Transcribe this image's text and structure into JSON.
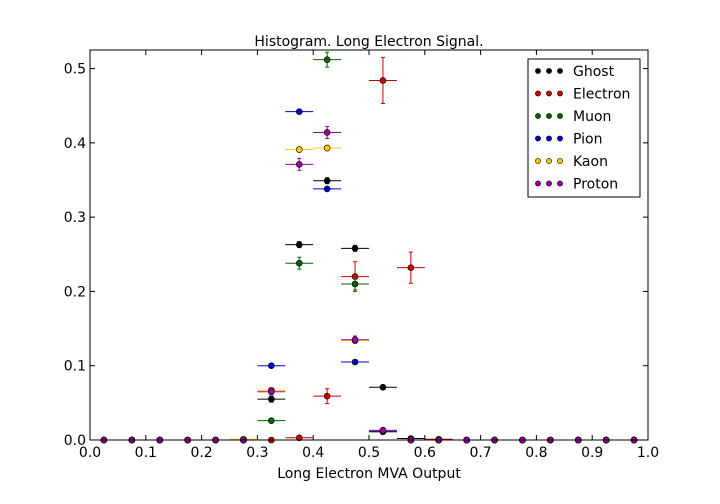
{
  "chart_data": {
    "type": "scatter",
    "title": "Histogram. Long Electron Signal.",
    "xlabel": "Long Electron MVA Output",
    "ylabel": "",
    "xlim": [
      0.0,
      1.0
    ],
    "ylim": [
      0.0,
      0.525
    ],
    "xticks": [
      "0.0",
      "0.1",
      "0.2",
      "0.3",
      "0.4",
      "0.5",
      "0.6",
      "0.7",
      "0.8",
      "0.9",
      "1.0"
    ],
    "yticks": [
      "0.0",
      "0.1",
      "0.2",
      "0.3",
      "0.4",
      "0.5"
    ],
    "grid": false,
    "legend_position": "top-right",
    "bin_half_width": 0.025,
    "series": [
      {
        "name": "Ghost",
        "color": "#000000",
        "points": [
          {
            "x": 0.025,
            "y": 0.0,
            "err": 0.0
          },
          {
            "x": 0.075,
            "y": 0.0,
            "err": 0.0
          },
          {
            "x": 0.125,
            "y": 0.0,
            "err": 0.0
          },
          {
            "x": 0.175,
            "y": 0.0,
            "err": 0.0
          },
          {
            "x": 0.225,
            "y": 0.0,
            "err": 0.0
          },
          {
            "x": 0.275,
            "y": 0.0,
            "err": 0.0
          },
          {
            "x": 0.325,
            "y": 0.055,
            "err": 0.004
          },
          {
            "x": 0.375,
            "y": 0.263,
            "err": 0.004
          },
          {
            "x": 0.425,
            "y": 0.349,
            "err": 0.004
          },
          {
            "x": 0.475,
            "y": 0.258,
            "err": 0.004
          },
          {
            "x": 0.525,
            "y": 0.071,
            "err": 0.003
          },
          {
            "x": 0.575,
            "y": 0.002,
            "err": 0.001
          },
          {
            "x": 0.625,
            "y": 0.0,
            "err": 0.0
          },
          {
            "x": 0.675,
            "y": 0.0,
            "err": 0.0
          },
          {
            "x": 0.725,
            "y": 0.0,
            "err": 0.0
          },
          {
            "x": 0.775,
            "y": 0.0,
            "err": 0.0
          },
          {
            "x": 0.825,
            "y": 0.0,
            "err": 0.0
          },
          {
            "x": 0.875,
            "y": 0.0,
            "err": 0.0
          },
          {
            "x": 0.925,
            "y": 0.0,
            "err": 0.0
          },
          {
            "x": 0.975,
            "y": 0.0,
            "err": 0.0
          }
        ]
      },
      {
        "name": "Electron",
        "color": "#cc0000",
        "points": [
          {
            "x": 0.025,
            "y": 0.0,
            "err": 0.0
          },
          {
            "x": 0.075,
            "y": 0.0,
            "err": 0.0
          },
          {
            "x": 0.125,
            "y": 0.0,
            "err": 0.0
          },
          {
            "x": 0.175,
            "y": 0.0,
            "err": 0.0
          },
          {
            "x": 0.225,
            "y": 0.0,
            "err": 0.0
          },
          {
            "x": 0.275,
            "y": 0.0,
            "err": 0.0
          },
          {
            "x": 0.325,
            "y": 0.0,
            "err": 0.0
          },
          {
            "x": 0.375,
            "y": 0.003,
            "err": 0.002
          },
          {
            "x": 0.425,
            "y": 0.059,
            "err": 0.01
          },
          {
            "x": 0.475,
            "y": 0.22,
            "err": 0.02
          },
          {
            "x": 0.525,
            "y": 0.484,
            "err": 0.031
          },
          {
            "x": 0.575,
            "y": 0.232,
            "err": 0.021
          },
          {
            "x": 0.625,
            "y": 0.001,
            "err": 0.001
          },
          {
            "x": 0.675,
            "y": 0.0,
            "err": 0.0
          },
          {
            "x": 0.725,
            "y": 0.0,
            "err": 0.0
          },
          {
            "x": 0.775,
            "y": 0.0,
            "err": 0.0
          },
          {
            "x": 0.825,
            "y": 0.0,
            "err": 0.0
          },
          {
            "x": 0.875,
            "y": 0.0,
            "err": 0.0
          },
          {
            "x": 0.925,
            "y": 0.0,
            "err": 0.0
          },
          {
            "x": 0.975,
            "y": 0.0,
            "err": 0.0
          }
        ]
      },
      {
        "name": "Muon",
        "color": "#006600",
        "points": [
          {
            "x": 0.025,
            "y": 0.0,
            "err": 0.0
          },
          {
            "x": 0.075,
            "y": 0.0,
            "err": 0.0
          },
          {
            "x": 0.125,
            "y": 0.0,
            "err": 0.0
          },
          {
            "x": 0.175,
            "y": 0.0,
            "err": 0.0
          },
          {
            "x": 0.225,
            "y": 0.0,
            "err": 0.0
          },
          {
            "x": 0.275,
            "y": 0.0,
            "err": 0.0
          },
          {
            "x": 0.325,
            "y": 0.026,
            "err": 0.003
          },
          {
            "x": 0.375,
            "y": 0.238,
            "err": 0.008
          },
          {
            "x": 0.425,
            "y": 0.512,
            "err": 0.01
          },
          {
            "x": 0.475,
            "y": 0.21,
            "err": 0.008
          },
          {
            "x": 0.525,
            "y": 0.011,
            "err": 0.002
          },
          {
            "x": 0.575,
            "y": 0.0,
            "err": 0.0
          },
          {
            "x": 0.625,
            "y": 0.0,
            "err": 0.0
          },
          {
            "x": 0.675,
            "y": 0.0,
            "err": 0.0
          },
          {
            "x": 0.725,
            "y": 0.0,
            "err": 0.0
          },
          {
            "x": 0.775,
            "y": 0.0,
            "err": 0.0
          },
          {
            "x": 0.825,
            "y": 0.0,
            "err": 0.0
          },
          {
            "x": 0.875,
            "y": 0.0,
            "err": 0.0
          },
          {
            "x": 0.925,
            "y": 0.0,
            "err": 0.0
          },
          {
            "x": 0.975,
            "y": 0.0,
            "err": 0.0
          }
        ]
      },
      {
        "name": "Pion",
        "color": "#0000cc",
        "points": [
          {
            "x": 0.025,
            "y": 0.0,
            "err": 0.0
          },
          {
            "x": 0.075,
            "y": 0.0,
            "err": 0.0
          },
          {
            "x": 0.125,
            "y": 0.0,
            "err": 0.0
          },
          {
            "x": 0.175,
            "y": 0.0,
            "err": 0.0
          },
          {
            "x": 0.225,
            "y": 0.0,
            "err": 0.0
          },
          {
            "x": 0.275,
            "y": 0.0,
            "err": 0.0
          },
          {
            "x": 0.325,
            "y": 0.1,
            "err": 0.002
          },
          {
            "x": 0.375,
            "y": 0.442,
            "err": 0.002
          },
          {
            "x": 0.425,
            "y": 0.338,
            "err": 0.002
          },
          {
            "x": 0.475,
            "y": 0.105,
            "err": 0.002
          },
          {
            "x": 0.525,
            "y": 0.012,
            "err": 0.001
          },
          {
            "x": 0.575,
            "y": 0.0,
            "err": 0.0
          },
          {
            "x": 0.625,
            "y": 0.0,
            "err": 0.0
          },
          {
            "x": 0.675,
            "y": 0.0,
            "err": 0.0
          },
          {
            "x": 0.725,
            "y": 0.0,
            "err": 0.0
          },
          {
            "x": 0.775,
            "y": 0.0,
            "err": 0.0
          },
          {
            "x": 0.825,
            "y": 0.0,
            "err": 0.0
          },
          {
            "x": 0.875,
            "y": 0.0,
            "err": 0.0
          },
          {
            "x": 0.925,
            "y": 0.0,
            "err": 0.0
          },
          {
            "x": 0.975,
            "y": 0.0,
            "err": 0.0
          }
        ]
      },
      {
        "name": "Kaon",
        "color": "#ffcc00",
        "points": [
          {
            "x": 0.025,
            "y": 0.0,
            "err": 0.0
          },
          {
            "x": 0.075,
            "y": 0.0,
            "err": 0.0
          },
          {
            "x": 0.125,
            "y": 0.0,
            "err": 0.0
          },
          {
            "x": 0.175,
            "y": 0.0,
            "err": 0.0
          },
          {
            "x": 0.225,
            "y": 0.0,
            "err": 0.0
          },
          {
            "x": 0.275,
            "y": 0.001,
            "err": 0.001
          },
          {
            "x": 0.325,
            "y": 0.067,
            "err": 0.003
          },
          {
            "x": 0.375,
            "y": 0.391,
            "err": 0.004
          },
          {
            "x": 0.425,
            "y": 0.393,
            "err": 0.004
          },
          {
            "x": 0.475,
            "y": 0.134,
            "err": 0.003
          },
          {
            "x": 0.525,
            "y": 0.013,
            "err": 0.001
          },
          {
            "x": 0.575,
            "y": 0.0,
            "err": 0.0
          },
          {
            "x": 0.625,
            "y": 0.0,
            "err": 0.0
          },
          {
            "x": 0.675,
            "y": 0.0,
            "err": 0.0
          },
          {
            "x": 0.725,
            "y": 0.0,
            "err": 0.0
          },
          {
            "x": 0.775,
            "y": 0.0,
            "err": 0.0
          },
          {
            "x": 0.825,
            "y": 0.0,
            "err": 0.0
          },
          {
            "x": 0.875,
            "y": 0.0,
            "err": 0.0
          },
          {
            "x": 0.925,
            "y": 0.0,
            "err": 0.0
          },
          {
            "x": 0.975,
            "y": 0.0,
            "err": 0.0
          }
        ]
      },
      {
        "name": "Proton",
        "color": "#990099",
        "points": [
          {
            "x": 0.025,
            "y": 0.0,
            "err": 0.0
          },
          {
            "x": 0.075,
            "y": 0.0,
            "err": 0.0
          },
          {
            "x": 0.125,
            "y": 0.0,
            "err": 0.0
          },
          {
            "x": 0.175,
            "y": 0.0,
            "err": 0.0
          },
          {
            "x": 0.225,
            "y": 0.0,
            "err": 0.0
          },
          {
            "x": 0.275,
            "y": 0.0,
            "err": 0.0
          },
          {
            "x": 0.325,
            "y": 0.065,
            "err": 0.004
          },
          {
            "x": 0.375,
            "y": 0.371,
            "err": 0.008
          },
          {
            "x": 0.425,
            "y": 0.414,
            "err": 0.008
          },
          {
            "x": 0.475,
            "y": 0.135,
            "err": 0.005
          },
          {
            "x": 0.525,
            "y": 0.013,
            "err": 0.002
          },
          {
            "x": 0.575,
            "y": 0.0,
            "err": 0.0
          },
          {
            "x": 0.625,
            "y": 0.0,
            "err": 0.0
          },
          {
            "x": 0.675,
            "y": 0.0,
            "err": 0.0
          },
          {
            "x": 0.725,
            "y": 0.0,
            "err": 0.0
          },
          {
            "x": 0.775,
            "y": 0.0,
            "err": 0.0
          },
          {
            "x": 0.825,
            "y": 0.0,
            "err": 0.0
          },
          {
            "x": 0.875,
            "y": 0.0,
            "err": 0.0
          },
          {
            "x": 0.925,
            "y": 0.0,
            "err": 0.0
          },
          {
            "x": 0.975,
            "y": 0.0,
            "err": 0.0
          }
        ]
      }
    ]
  }
}
